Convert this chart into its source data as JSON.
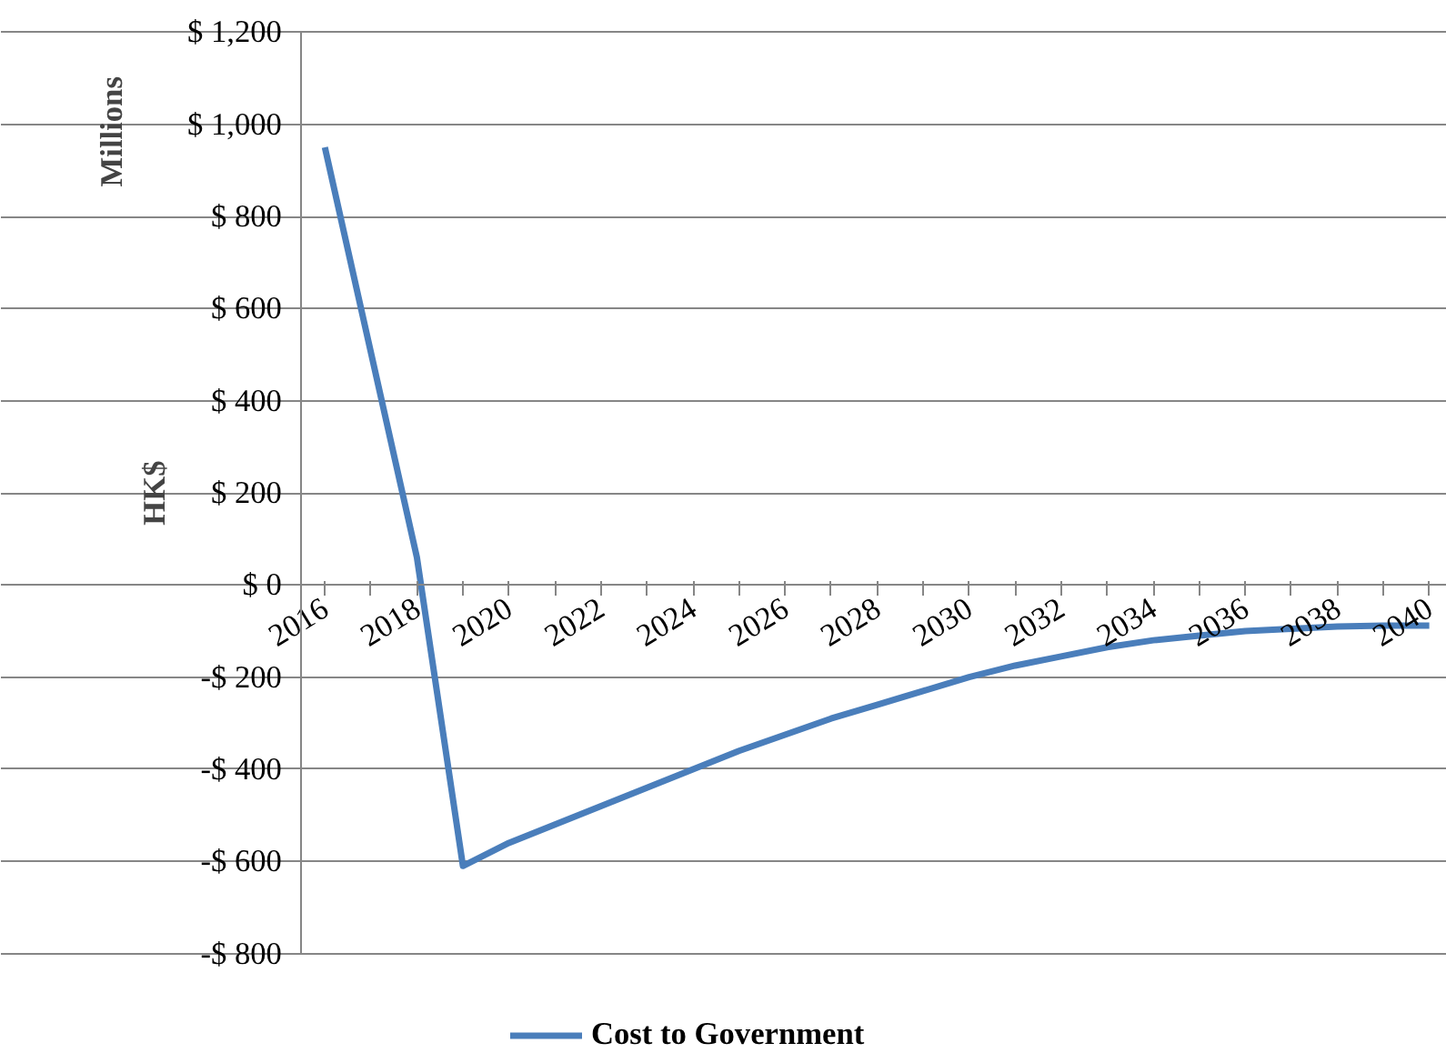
{
  "chart_data": {
    "type": "line",
    "ylabel": "HK$",
    "annotations": [
      "Millions"
    ],
    "categories": [
      "2016",
      null,
      "2018",
      null,
      "2020",
      null,
      "2022",
      null,
      "2024",
      null,
      "2026",
      null,
      "2028",
      null,
      "2030",
      null,
      "2032",
      null,
      "2034",
      null,
      "2036",
      null,
      "2038",
      null,
      "2040"
    ],
    "series": [
      {
        "name": "Cost to Government",
        "color": "#4a7ebb",
        "values": [
          950,
          505,
          60,
          -610,
          -560,
          -520,
          -480,
          -440,
          -400,
          -360,
          -325,
          -290,
          -260,
          -230,
          -200,
          -175,
          -155,
          -135,
          -120,
          -110,
          -100,
          -95,
          -90,
          -88,
          -88
        ]
      }
    ],
    "ylim": [
      -800,
      1200
    ],
    "yticks": [
      {
        "value": -800,
        "label": "-$ 800"
      },
      {
        "value": -600,
        "label": "-$ 600"
      },
      {
        "value": -400,
        "label": "-$ 400"
      },
      {
        "value": -200,
        "label": "-$ 200"
      },
      {
        "value": 0,
        "label": "$ 0"
      },
      {
        "value": 200,
        "label": "$ 200"
      },
      {
        "value": 400,
        "label": "$ 400"
      },
      {
        "value": 600,
        "label": "$ 600"
      },
      {
        "value": 800,
        "label": "$ 800"
      },
      {
        "value": 1000,
        "label": "$ 1,000"
      },
      {
        "value": 1200,
        "label": "$ 1,200"
      }
    ],
    "grid": "y",
    "legend": "bottom",
    "marker": "none",
    "line_style": "solid"
  }
}
